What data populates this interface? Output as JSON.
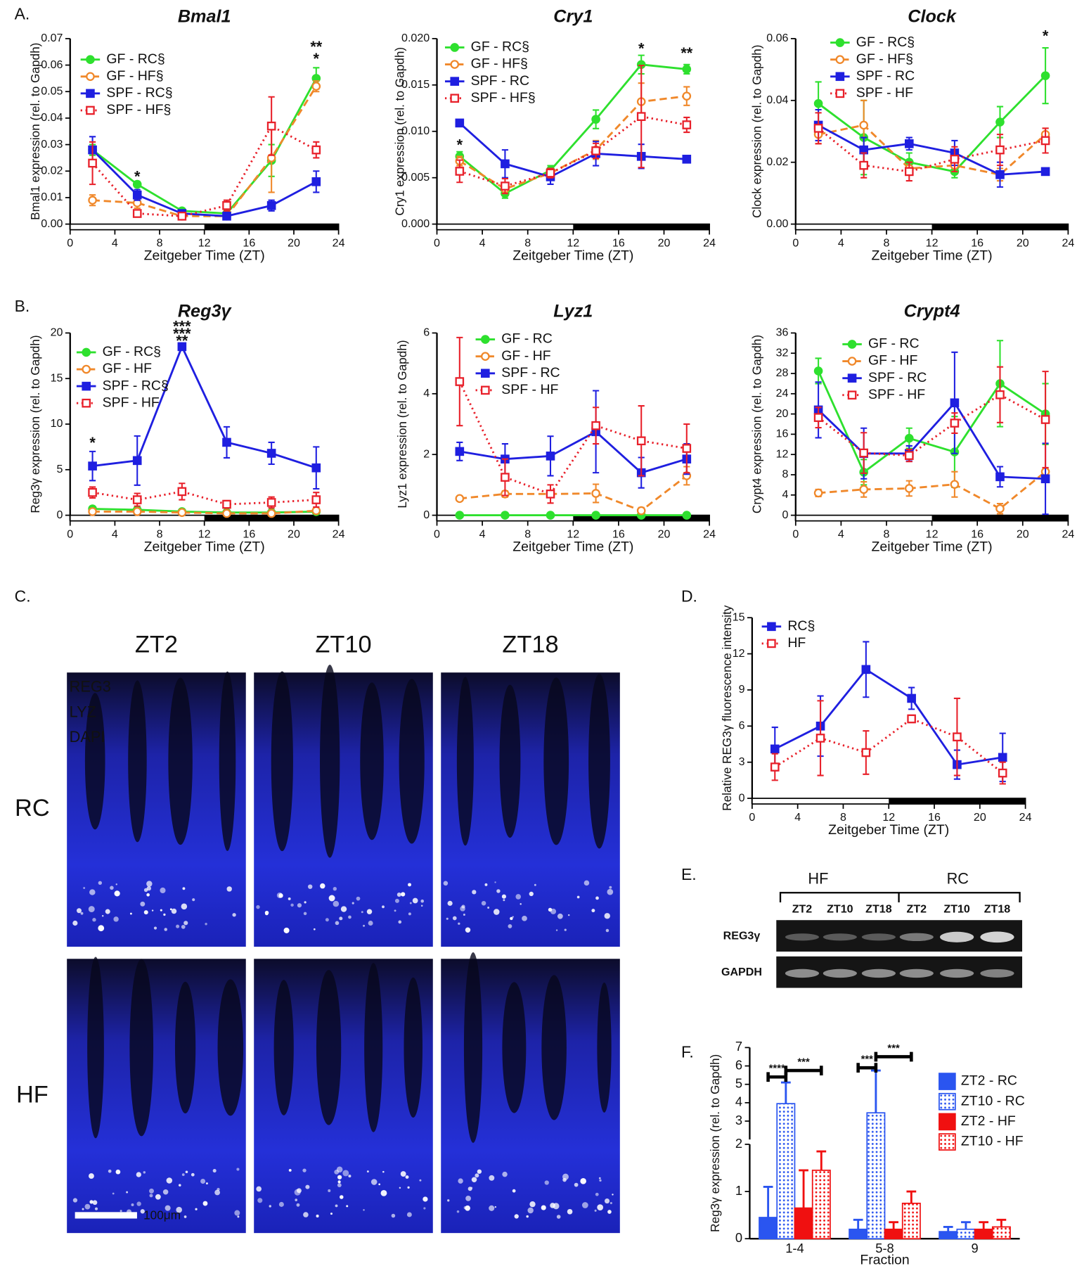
{
  "panel_labels": [
    "A.",
    "B.",
    "C.",
    "D.",
    "E.",
    "F."
  ],
  "chart_data": [
    {
      "type": "line",
      "title": "Bmal1",
      "xlabel": "Zeitgeber Time (ZT)",
      "ylabel": "Bmal1 expression (rel. to Gapdh)",
      "x": [
        2,
        6,
        10,
        14,
        18,
        22
      ],
      "xlim": [
        0,
        24
      ],
      "xticks": [
        0,
        4,
        8,
        12,
        16,
        20,
        24
      ],
      "ylim": [
        0,
        0.07
      ],
      "yticks": [
        {
          "value": 0,
          "label": "0.00"
        },
        0.01,
        0.02,
        0.03,
        0.04,
        0.05,
        0.06,
        0.07
      ],
      "dark_period": [
        12,
        24
      ],
      "series": [
        {
          "name": "GF - RC§",
          "color": "#2ee02e",
          "dash": "solid",
          "marker": "circle",
          "values": [
            0.028,
            0.015,
            0.005,
            0.004,
            0.024,
            0.055
          ],
          "errors": [
            0.002,
            0.001,
            0.001,
            0.001,
            0.006,
            0.004
          ]
        },
        {
          "name": "GF - HF§",
          "color": "#f0882a",
          "dash": "dashed",
          "marker": "circle-open",
          "values": [
            0.009,
            0.008,
            0.003,
            0.003,
            0.025,
            0.052
          ],
          "errors": [
            0.002,
            0.002,
            0.001,
            0.001,
            0.013,
            0.002
          ]
        },
        {
          "name": "SPF - RC§",
          "color": "#1f1fe0",
          "dash": "solid",
          "marker": "square",
          "values": [
            0.028,
            0.011,
            0.004,
            0.003,
            0.007,
            0.016
          ],
          "errors": [
            0.005,
            0.002,
            0.001,
            0.001,
            0.002,
            0.004
          ]
        },
        {
          "name": "SPF - HF§",
          "color": "#e8202a",
          "dash": "dotted",
          "marker": "square-open",
          "values": [
            0.023,
            0.004,
            0.003,
            0.007,
            0.037,
            0.028
          ],
          "errors": [
            0.008,
            0.001,
            0.001,
            0.002,
            0.011,
            0.003
          ]
        }
      ],
      "annotations": [
        {
          "text": "*",
          "x": 6,
          "y": 0.0175,
          "color": "#e8202a"
        },
        {
          "text": "**",
          "x": 22,
          "y": 0.0665,
          "color": "#2ee02e"
        },
        {
          "text": "*",
          "x": 22,
          "y": 0.062,
          "color": "#f0882a"
        }
      ]
    },
    {
      "type": "line",
      "title": "Cry1",
      "xlabel": "Zeitgeber Time (ZT)",
      "ylabel": "Cry1 expression (rel. to Gapdh)",
      "x": [
        2,
        6,
        10,
        14,
        18,
        22
      ],
      "xlim": [
        0,
        24
      ],
      "xticks": [
        0,
        4,
        8,
        12,
        16,
        20,
        24
      ],
      "ylim": [
        0,
        0.02
      ],
      "yticks": [
        {
          "value": 0,
          "label": "0.000"
        },
        {
          "value": 0.005,
          "label": "0.005"
        },
        {
          "value": 0.01,
          "label": "0.010"
        },
        {
          "value": 0.015,
          "label": "0.015"
        },
        {
          "value": 0.02,
          "label": "0.020"
        }
      ],
      "dark_period": [
        12,
        24
      ],
      "series": [
        {
          "name": "GF - RC§",
          "color": "#2ee02e",
          "dash": "solid",
          "marker": "circle",
          "values": [
            0.0073,
            0.0033,
            0.0058,
            0.0113,
            0.0172,
            0.0167
          ],
          "errors": [
            0.0005,
            0.0005,
            0.0005,
            0.001,
            0.001,
            0.0005
          ]
        },
        {
          "name": "GF - HF§",
          "color": "#f0882a",
          "dash": "dashed",
          "marker": "circle-open",
          "values": [
            0.0068,
            0.0038,
            0.0055,
            0.008,
            0.0132,
            0.0138
          ],
          "errors": [
            0.0005,
            0.0005,
            0.0005,
            0.001,
            0.002,
            0.001
          ]
        },
        {
          "name": "SPF - RC",
          "color": "#1f1fe0",
          "dash": "solid",
          "marker": "square",
          "values": [
            0.0109,
            0.0065,
            0.0051,
            0.0076,
            0.0073,
            0.007
          ],
          "errors": [
            0.0003,
            0.0015,
            0.0008,
            0.0013,
            0.0013,
            0.0003
          ]
        },
        {
          "name": "SPF - HF§",
          "color": "#e8202a",
          "dash": "dotted",
          "marker": "square-open",
          "values": [
            0.0057,
            0.0041,
            0.0055,
            0.0079,
            0.0116,
            0.0107
          ],
          "errors": [
            0.0012,
            0.0008,
            0.0005,
            0.0008,
            0.0055,
            0.0008
          ]
        }
      ],
      "annotations": [
        {
          "text": "*",
          "x": 2,
          "y": 0.0084,
          "color": "#2ee02e"
        },
        {
          "text": "*",
          "x": 18,
          "y": 0.0188,
          "color": "#2ee02e"
        },
        {
          "text": "**",
          "x": 22,
          "y": 0.0183,
          "color": "#2ee02e"
        }
      ]
    },
    {
      "type": "line",
      "title": "Clock",
      "xlabel": "Zeitgeber Time (ZT)",
      "ylabel": "Clock expression (rel. to Gapdh)",
      "x": [
        2,
        6,
        10,
        14,
        18,
        22
      ],
      "xlim": [
        0,
        24
      ],
      "xticks": [
        0,
        4,
        8,
        12,
        16,
        20,
        24
      ],
      "ylim": [
        0,
        0.06
      ],
      "yticks": [
        {
          "value": 0,
          "label": "0.00"
        },
        0.02,
        0.04,
        0.06
      ],
      "dark_period": [
        12,
        24
      ],
      "series": [
        {
          "name": "GF - RC§",
          "color": "#2ee02e",
          "dash": "solid",
          "marker": "circle",
          "values": [
            0.039,
            0.028,
            0.02,
            0.017,
            0.033,
            0.048
          ],
          "errors": [
            0.007,
            0.012,
            0.003,
            0.002,
            0.005,
            0.009
          ]
        },
        {
          "name": "GF - HF§",
          "color": "#f0882a",
          "dash": "dashed",
          "marker": "circle-open",
          "values": [
            0.029,
            0.032,
            0.018,
            0.019,
            0.016,
            0.029
          ],
          "errors": [
            0.003,
            0.008,
            0.002,
            0.002,
            0.002,
            0.002
          ]
        },
        {
          "name": "SPF - RC",
          "color": "#1f1fe0",
          "dash": "solid",
          "marker": "square",
          "values": [
            0.032,
            0.024,
            0.026,
            0.023,
            0.016,
            0.017
          ],
          "errors": [
            0.005,
            0.004,
            0.002,
            0.004,
            0.004,
            0.001
          ]
        },
        {
          "name": "SPF - HF",
          "color": "#e8202a",
          "dash": "dotted",
          "marker": "square-open",
          "values": [
            0.031,
            0.019,
            0.017,
            0.021,
            0.024,
            0.027
          ],
          "errors": [
            0.005,
            0.004,
            0.003,
            0.004,
            0.005,
            0.004
          ]
        }
      ],
      "annotations": [
        {
          "text": "*",
          "x": 22,
          "y": 0.0605,
          "color": "#2ee02e"
        }
      ]
    },
    {
      "type": "line",
      "title": "Reg3γ",
      "xlabel": "Zeitgeber Time (ZT)",
      "ylabel": "Reg3γ expression (rel. to Gapdh)",
      "x": [
        2,
        6,
        10,
        14,
        18,
        22
      ],
      "xlim": [
        0,
        24
      ],
      "xticks": [
        0,
        4,
        8,
        12,
        16,
        20,
        24
      ],
      "ylim": [
        0,
        20
      ],
      "yticks": [
        0,
        5,
        10,
        15,
        20
      ],
      "dark_period": [
        12,
        24
      ],
      "series": [
        {
          "name": "GF - RC§",
          "color": "#2ee02e",
          "dash": "solid",
          "marker": "circle",
          "values": [
            0.7,
            0.6,
            0.4,
            0.3,
            0.3,
            0.4
          ],
          "errors": [
            0.2,
            0.2,
            0.2,
            0.2,
            0.2,
            0.2
          ]
        },
        {
          "name": "GF - HF",
          "color": "#f0882a",
          "dash": "dashed",
          "marker": "circle-open",
          "values": [
            0.4,
            0.4,
            0.3,
            0.2,
            0.2,
            0.5
          ],
          "errors": [
            0.2,
            0.2,
            0.2,
            0.2,
            0.2,
            0.2
          ]
        },
        {
          "name": "SPF - RC§",
          "color": "#1f1fe0",
          "dash": "solid",
          "marker": "square",
          "values": [
            5.4,
            6.0,
            18.5,
            8.0,
            6.8,
            5.2
          ],
          "errors": [
            1.6,
            2.7,
            0.3,
            1.7,
            1.2,
            2.3
          ]
        },
        {
          "name": "SPF - HF",
          "color": "#e8202a",
          "dash": "dotted",
          "marker": "square-open",
          "values": [
            2.5,
            1.7,
            2.6,
            1.2,
            1.4,
            1.7
          ],
          "errors": [
            0.6,
            0.7,
            0.9,
            0.4,
            0.6,
            0.8
          ]
        }
      ],
      "annotations": [
        {
          "text": "*",
          "x": 2,
          "y": 7.8,
          "color": "#f0882a"
        },
        {
          "text": "***",
          "x": 10,
          "y": 20.6,
          "color": "#2ee02e"
        },
        {
          "text": "***",
          "x": 10,
          "y": 19.8,
          "color": "#f0882a"
        },
        {
          "text": "**",
          "x": 10,
          "y": 19.0,
          "color": "#e8202a"
        }
      ]
    },
    {
      "type": "line",
      "title": "Lyz1",
      "xlabel": "Zeitgeber Time (ZT)",
      "ylabel": "Lyz1 expression (rel. to Gapdh)",
      "x": [
        2,
        6,
        10,
        14,
        18,
        22
      ],
      "xlim": [
        0,
        24
      ],
      "xticks": [
        0,
        4,
        8,
        12,
        16,
        20,
        24
      ],
      "ylim": [
        0,
        6
      ],
      "yticks": [
        0,
        2,
        4,
        6
      ],
      "dark_period": [
        12,
        24
      ],
      "series": [
        {
          "name": "GF - RC",
          "color": "#2ee02e",
          "dash": "solid",
          "marker": "circle",
          "values": [
            0,
            0,
            0,
            0,
            0,
            0
          ],
          "errors": [
            0,
            0,
            0,
            0,
            0,
            0
          ]
        },
        {
          "name": "GF - HF",
          "color": "#f0882a",
          "dash": "dashed",
          "marker": "circle-open",
          "values": [
            0.55,
            0.7,
            0.7,
            0.72,
            0.15,
            1.3
          ],
          "errors": [
            0.05,
            0.1,
            0.1,
            0.3,
            0.1,
            0.3
          ]
        },
        {
          "name": "SPF - RC",
          "color": "#1f1fe0",
          "dash": "solid",
          "marker": "square",
          "values": [
            2.1,
            1.85,
            1.95,
            2.75,
            1.4,
            1.85
          ],
          "errors": [
            0.3,
            0.5,
            0.65,
            1.35,
            0.5,
            0.5
          ]
        },
        {
          "name": "SPF - HF",
          "color": "#e8202a",
          "dash": "dotted",
          "marker": "square-open",
          "values": [
            4.4,
            1.25,
            0.7,
            2.95,
            2.45,
            2.2
          ],
          "errors": [
            1.45,
            0.6,
            0.3,
            0.6,
            1.15,
            0.8
          ]
        }
      ],
      "annotations": []
    },
    {
      "type": "line",
      "title": "Crypt4",
      "xlabel": "Zeitgeber Time (ZT)",
      "ylabel": "Crypt4 expression (rel. to Gapdh)",
      "x": [
        2,
        6,
        10,
        14,
        18,
        22
      ],
      "xlim": [
        0,
        24
      ],
      "xticks": [
        0,
        4,
        8,
        12,
        16,
        20,
        24
      ],
      "ylim": [
        0,
        36
      ],
      "yticks": [
        0,
        4,
        8,
        12,
        16,
        20,
        24,
        28,
        32,
        36
      ],
      "dark_period": [
        12,
        24
      ],
      "series": [
        {
          "name": "GF - RC",
          "color": "#2ee02e",
          "dash": "solid",
          "marker": "circle",
          "values": [
            28.5,
            8.5,
            15.2,
            12.5,
            26,
            20
          ],
          "errors": [
            2.5,
            2.5,
            2,
            7,
            8.5,
            6
          ]
        },
        {
          "name": "GF - HF",
          "color": "#f0882a",
          "dash": "dashed",
          "marker": "circle-open",
          "values": [
            4.4,
            5.1,
            5.3,
            6.1,
            1.3,
            8.6
          ],
          "errors": [
            0.7,
            1.5,
            1.5,
            2.5,
            1,
            0.5
          ]
        },
        {
          "name": "SPF - RC",
          "color": "#1f1fe0",
          "dash": "solid",
          "marker": "square",
          "values": [
            20.8,
            12.2,
            12.2,
            22.2,
            7.6,
            7.2
          ],
          "errors": [
            5.5,
            5,
            1.5,
            10,
            2,
            7
          ]
        },
        {
          "name": "SPF - HF",
          "color": "#e8202a",
          "dash": "dotted",
          "marker": "square-open",
          "values": [
            19.3,
            12.3,
            11.8,
            18.2,
            23.8,
            18.9
          ],
          "errors": [
            2,
            4,
            1.2,
            2,
            5.5,
            9.5
          ]
        }
      ],
      "annotations": []
    },
    {
      "type": "line",
      "xlabel": "Zeitgeber Time (ZT)",
      "ylabel": "Relative REG3γ fluorescence intensity",
      "x": [
        2,
        6,
        10,
        14,
        18,
        22
      ],
      "xlim": [
        0,
        24
      ],
      "xticks": [
        0,
        4,
        8,
        12,
        16,
        20,
        24
      ],
      "ylim": [
        0,
        15
      ],
      "yticks": [
        0,
        3,
        6,
        9,
        12,
        15
      ],
      "dark_period": [
        12,
        24
      ],
      "series": [
        {
          "name": "RC§",
          "color": "#1f1fe0",
          "dash": "solid",
          "marker": "square",
          "values": [
            4.1,
            6.0,
            10.7,
            8.3,
            2.8,
            3.4
          ],
          "errors": [
            1.8,
            2.5,
            2.3,
            0.9,
            1.2,
            2.0
          ]
        },
        {
          "name": "HF",
          "color": "#e8202a",
          "dash": "dotted",
          "marker": "square-open",
          "values": [
            2.6,
            5.0,
            3.8,
            6.6,
            5.1,
            2.1
          ],
          "errors": [
            1.1,
            3.1,
            1.8,
            0.3,
            3.2,
            0.9
          ]
        }
      ],
      "annotations": []
    },
    {
      "type": "bar",
      "xlabel": "Fraction",
      "ylabel": "Reg3γ expression (rel. to Gapdh)",
      "categories": [
        "1-4",
        "5-8",
        "9"
      ],
      "ylim": [
        0,
        7
      ],
      "yticks": [
        0,
        1,
        2,
        3,
        4,
        5,
        6,
        7
      ],
      "axis_break": 2,
      "series": [
        {
          "name": "ZT2 - RC",
          "color": "#2a55f0",
          "fill": "solid",
          "values": [
            0.45,
            0.2,
            0.15
          ],
          "errors": [
            0.65,
            0.2,
            0.1
          ]
        },
        {
          "name": "ZT10 - RC",
          "color": "#2a55f0",
          "fill": "dotted",
          "values": [
            3.95,
            3.45,
            0.2
          ],
          "errors": [
            1.15,
            2.3,
            0.15
          ]
        },
        {
          "name": "ZT2 - HF",
          "color": "#f01010",
          "fill": "solid",
          "values": [
            0.65,
            0.2,
            0.2
          ],
          "errors": [
            0.8,
            0.15,
            0.15
          ]
        },
        {
          "name": "ZT10 - HF",
          "color": "#f01010",
          "fill": "dotted",
          "values": [
            1.45,
            0.75,
            0.25
          ],
          "errors": [
            0.4,
            0.25,
            0.15
          ]
        }
      ],
      "brackets": [
        {
          "label": "****",
          "category": 0,
          "from": 0,
          "to": 1,
          "y": 5.4
        },
        {
          "label": "***",
          "category": 0,
          "from": 1,
          "to": 3,
          "y": 5.75
        },
        {
          "label": "***",
          "category": 1,
          "from": 0,
          "to": 1,
          "y": 5.9
        },
        {
          "label": "***",
          "category": 1,
          "from": 1,
          "to": 3,
          "y": 6.5
        }
      ]
    }
  ],
  "panel_c": {
    "columns": [
      "ZT2",
      "ZT10",
      "ZT18"
    ],
    "rows": [
      "RC",
      "HF"
    ],
    "stains": [
      "REG3",
      "LYZ",
      "DAPI"
    ],
    "stain_colors": [
      "#e8e020",
      "#ffffff",
      "#3a8ae8"
    ],
    "scale_bar": "100μm"
  },
  "panel_e": {
    "groups": [
      "HF",
      "RC"
    ],
    "lanes": [
      "ZT2",
      "ZT10",
      "ZT18",
      "ZT2",
      "ZT10",
      "ZT18"
    ],
    "bands": [
      "REG3γ",
      "GAPDH"
    ]
  }
}
